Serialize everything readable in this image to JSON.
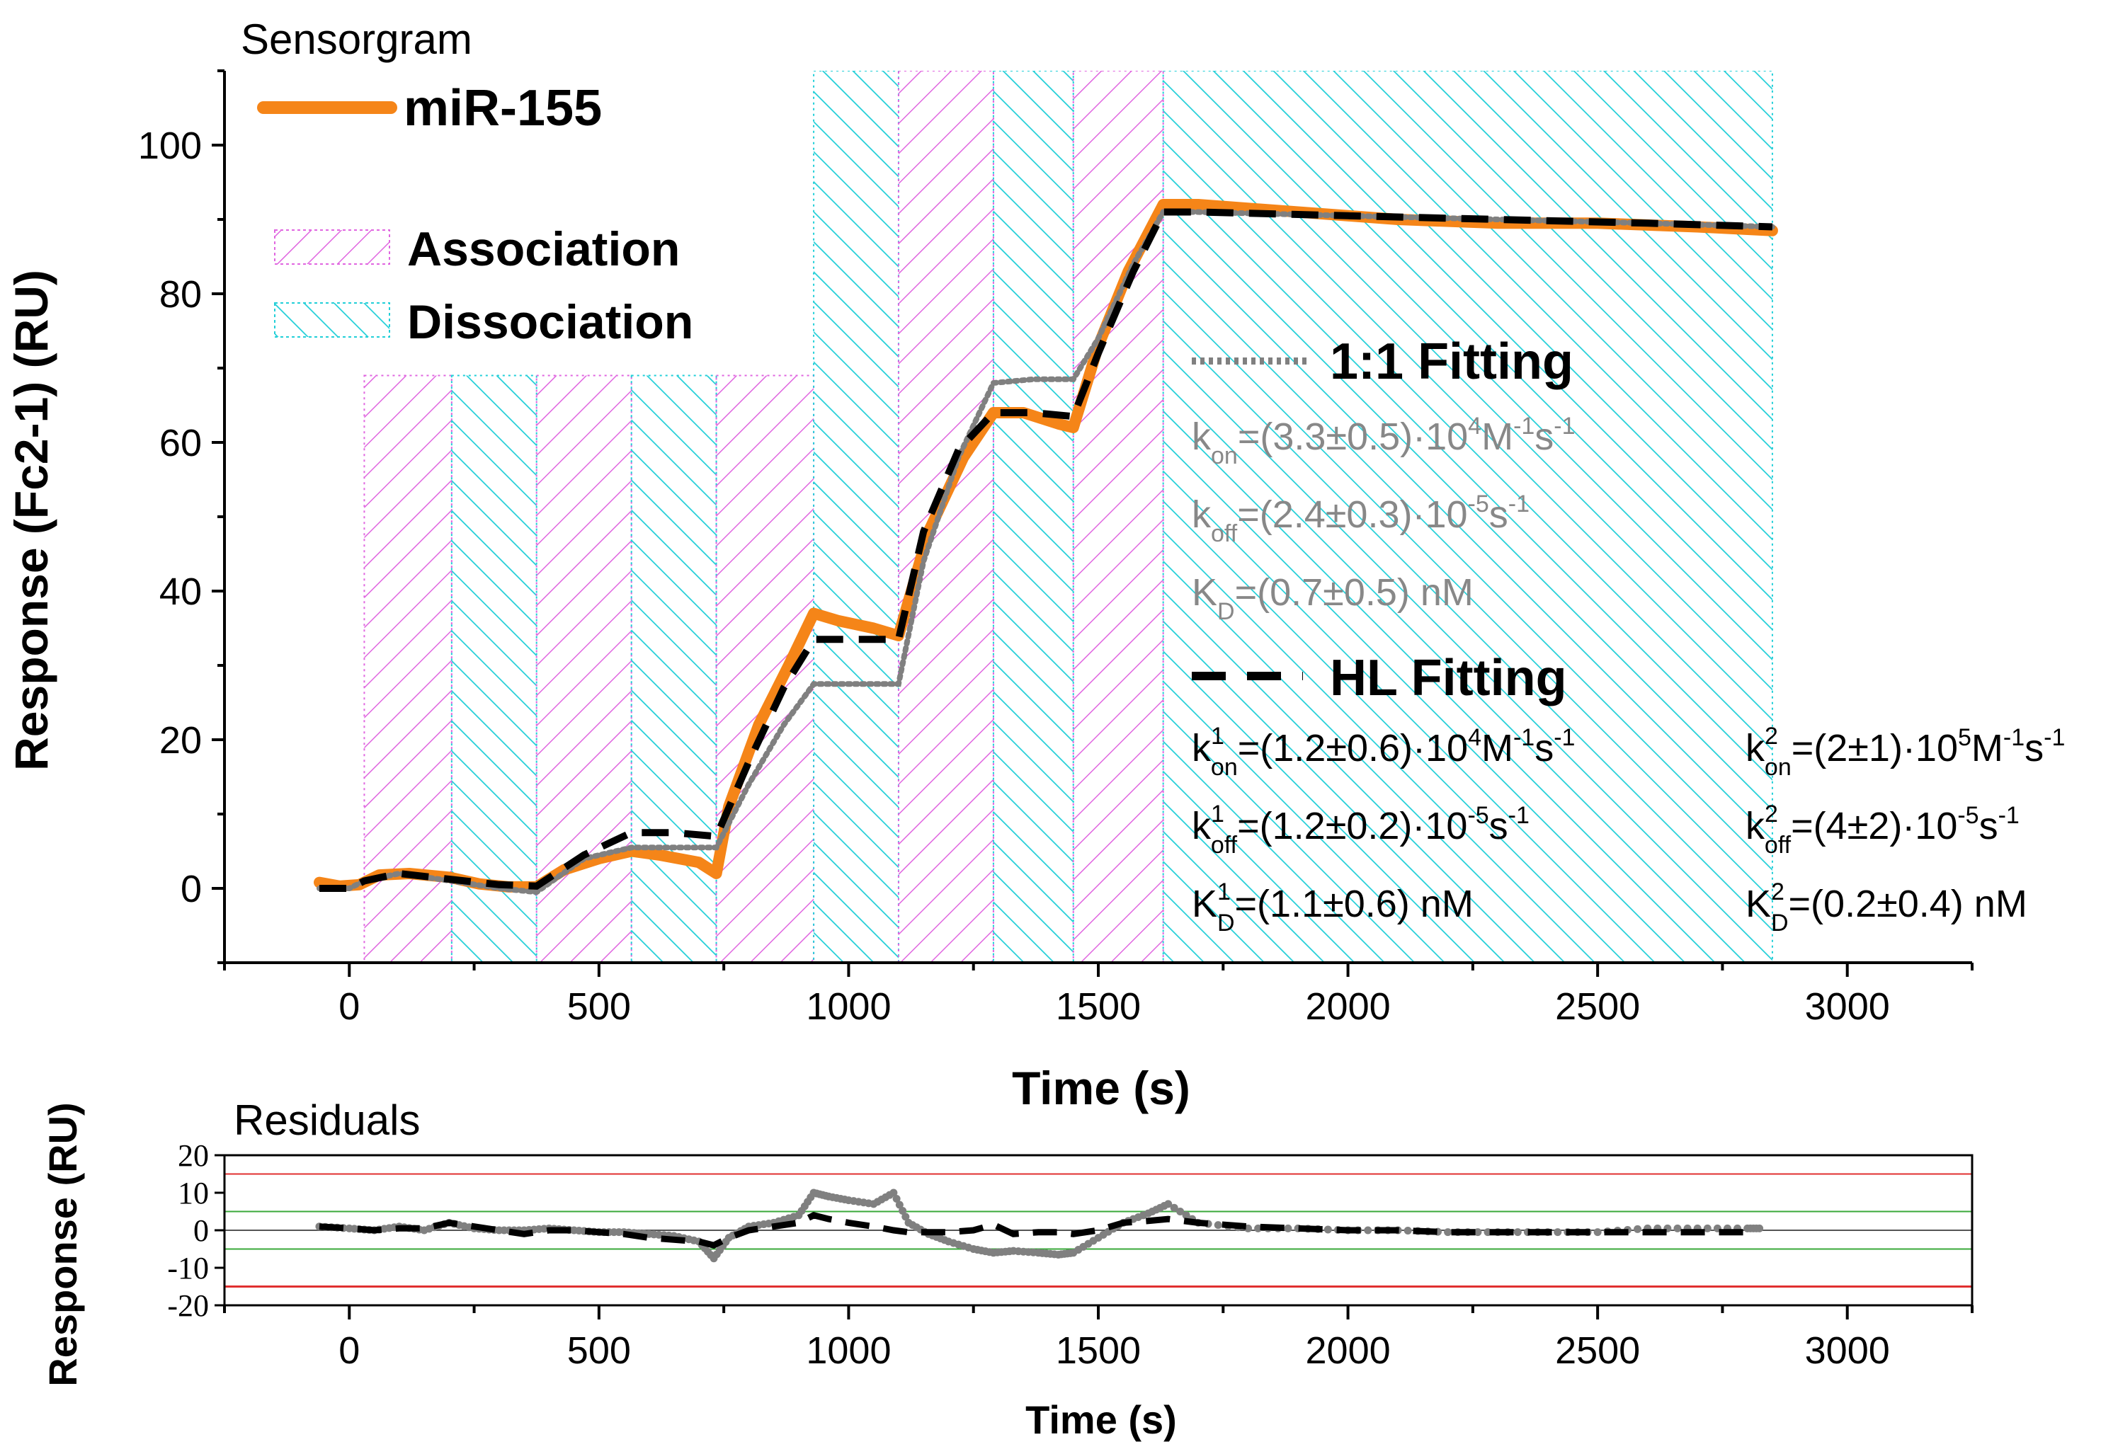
{
  "colors": {
    "association": "#e066e0",
    "dissociation": "#22cfd8",
    "mir155": "#f58518",
    "fit_1to1": "#808080",
    "fit_hl": "#000000",
    "band_red": "#e03030",
    "band_green": "#3aa83a"
  },
  "chart_data": [
    {
      "type": "line",
      "title": "Sensorgram",
      "xlabel": "Time (s)",
      "ylabel": "Response (Fc2-1) (RU)",
      "xlim": [
        -250,
        3250
      ],
      "ylim": [
        -10,
        110
      ],
      "xticks": [
        0,
        500,
        1000,
        1500,
        2000,
        2500,
        3000
      ],
      "yticks": [
        0,
        20,
        40,
        60,
        80,
        100
      ],
      "legend": {
        "mir155": "miR-155",
        "association": "Association",
        "dissociation": "Dissociation",
        "fit11": "1:1 Fitting",
        "fithl": "HL Fitting"
      },
      "shaded_regions": [
        {
          "kind": "association",
          "x": [
            30,
            205
          ],
          "top": 69
        },
        {
          "kind": "dissociation",
          "x": [
            205,
            375
          ],
          "top": 69
        },
        {
          "kind": "association",
          "x": [
            375,
            565
          ],
          "top": 69
        },
        {
          "kind": "dissociation",
          "x": [
            565,
            735
          ],
          "top": 69
        },
        {
          "kind": "association",
          "x": [
            735,
            930
          ],
          "top": 69
        },
        {
          "kind": "dissociation",
          "x": [
            930,
            1100
          ],
          "top": 110
        },
        {
          "kind": "association",
          "x": [
            1100,
            1290
          ],
          "top": 110
        },
        {
          "kind": "dissociation",
          "x": [
            1290,
            1450
          ],
          "top": 110
        },
        {
          "kind": "association",
          "x": [
            1450,
            1630
          ],
          "top": 110
        },
        {
          "kind": "dissociation",
          "x": [
            1630,
            2850
          ],
          "top": 110
        }
      ],
      "series": [
        {
          "name": "miR-155",
          "x": [
            -60,
            -20,
            20,
            60,
            120,
            200,
            260,
            320,
            375,
            430,
            500,
            565,
            620,
            700,
            735,
            760,
            820,
            880,
            930,
            980,
            1050,
            1100,
            1160,
            1230,
            1290,
            1350,
            1420,
            1450,
            1500,
            1560,
            1630,
            1700,
            1900,
            2100,
            2300,
            2500,
            2700,
            2850
          ],
          "y": [
            0.8,
            0.3,
            0.5,
            1.8,
            2.0,
            1.5,
            0.6,
            0.2,
            0.2,
            2.5,
            4.0,
            5.0,
            4.5,
            3.5,
            2.0,
            11.0,
            22.0,
            30.0,
            37.0,
            36.0,
            35.0,
            34.0,
            48.0,
            58.0,
            64.0,
            64.0,
            62.5,
            62.0,
            73.0,
            83.0,
            92.0,
            92.0,
            91.0,
            90.0,
            89.5,
            89.5,
            89.0,
            88.5
          ]
        },
        {
          "name": "1:1 Fitting",
          "x": [
            -60,
            0,
            30,
            100,
            205,
            300,
            375,
            470,
            565,
            650,
            735,
            800,
            870,
            930,
            1000,
            1100,
            1150,
            1220,
            1290,
            1370,
            1450,
            1500,
            1570,
            1630,
            1700,
            2000,
            2300,
            2600,
            2850
          ],
          "y": [
            0,
            0,
            1.0,
            2.0,
            1.0,
            0.0,
            -0.5,
            4.0,
            5.5,
            5.5,
            5.5,
            14.0,
            22.0,
            27.5,
            27.5,
            27.5,
            44.0,
            58.0,
            68.0,
            68.5,
            68.5,
            74.0,
            84.0,
            91.0,
            91.0,
            90.5,
            90.0,
            89.5,
            89.0
          ]
        },
        {
          "name": "HL Fitting",
          "x": [
            -60,
            0,
            30,
            100,
            205,
            300,
            375,
            470,
            565,
            650,
            735,
            800,
            870,
            930,
            1000,
            1100,
            1150,
            1220,
            1290,
            1370,
            1450,
            1500,
            1570,
            1630,
            1700,
            2000,
            2300,
            2600,
            2850
          ],
          "y": [
            0,
            0,
            1.0,
            2.0,
            1.2,
            0.5,
            0.3,
            4.5,
            7.5,
            7.5,
            7.0,
            17.0,
            27.0,
            33.5,
            33.5,
            33.5,
            48.0,
            59.0,
            64.0,
            64.0,
            63.5,
            72.0,
            83.0,
            91.0,
            91.0,
            90.5,
            90.0,
            89.5,
            89.0
          ]
        }
      ],
      "annotations": {
        "fit11_params": [
          {
            "base": "k",
            "sub": "on",
            "rest": "=(3.3±0.5)·10",
            "exp": "4",
            "unit": "M",
            "unit_exp": "-1",
            "unit2": "s",
            "unit2_exp": "-1"
          },
          {
            "base": "k",
            "sub": "off",
            "rest": "=(2.4±0.3)·10",
            "exp": "-5",
            "unit": "s",
            "unit_exp": "-1"
          },
          {
            "base": "K",
            "sub": "D",
            "rest": "=(0.7±0.5) nM"
          }
        ],
        "hl_params_1": [
          {
            "base": "k",
            "sup": "1",
            "sub": "on",
            "rest": "=(1.2±0.6)·10",
            "exp": "4",
            "unit": "M",
            "unit_exp": "-1",
            "unit2": "s",
            "unit2_exp": "-1"
          },
          {
            "base": "k",
            "sup": "1",
            "sub": "off",
            "rest": "=(1.2±0.2)·10",
            "exp": "-5",
            "unit": "s",
            "unit_exp": "-1"
          },
          {
            "base": "K",
            "sup": "1",
            "sub": "D",
            "rest": "=(1.1±0.6) nM"
          }
        ],
        "hl_params_2": [
          {
            "base": "k",
            "sup": "2",
            "sub": "on",
            "rest": "=(2±1)·10",
            "exp": "5",
            "unit": "M",
            "unit_exp": "-1",
            "unit2": "s",
            "unit2_exp": "-1"
          },
          {
            "base": "k",
            "sup": "2",
            "sub": "off",
            "rest": "=(4±2)·10",
            "exp": "-5",
            "unit": "s",
            "unit_exp": "-1"
          },
          {
            "base": "K",
            "sup": "2",
            "sub": "D",
            "rest": "=(0.2±0.4) nM"
          }
        ]
      }
    },
    {
      "type": "scatter",
      "title": "Residuals",
      "xlabel": "Time (s)",
      "ylabel": "Response (RU)",
      "xlim": [
        -250,
        3250
      ],
      "ylim": [
        -20,
        20
      ],
      "xticks": [
        0,
        500,
        1000,
        1500,
        2000,
        2500,
        3000
      ],
      "yticks": [
        20,
        10,
        0,
        -10,
        -20
      ],
      "reference_lines": [
        {
          "y": 15,
          "color": "red"
        },
        {
          "y": 5,
          "color": "green"
        },
        {
          "y": 0,
          "color": "black"
        },
        {
          "y": -5,
          "color": "green"
        },
        {
          "y": -15,
          "color": "red"
        }
      ],
      "series": [
        {
          "name": "1:1 Fitting residuals",
          "x": [
            -60,
            0,
            50,
            100,
            150,
            200,
            250,
            300,
            350,
            400,
            450,
            500,
            550,
            600,
            650,
            700,
            730,
            760,
            800,
            850,
            900,
            930,
            960,
            1000,
            1050,
            1090,
            1120,
            1160,
            1200,
            1250,
            1290,
            1330,
            1380,
            1420,
            1450,
            1500,
            1550,
            1600,
            1640,
            1700,
            1800,
            1900,
            2000,
            2100,
            2200,
            2300,
            2400,
            2500,
            2600,
            2700,
            2800,
            2830
          ],
          "y": [
            1.0,
            0.5,
            0.0,
            1.0,
            0.0,
            2.0,
            0.5,
            0.0,
            0.0,
            0.5,
            0.0,
            -0.5,
            -0.5,
            -1.0,
            -1.5,
            -3.0,
            -7.5,
            -2.0,
            1.0,
            2.0,
            4.0,
            10.0,
            9.0,
            8.0,
            7.0,
            10.0,
            2.0,
            -1.0,
            -3.0,
            -5.0,
            -6.0,
            -5.5,
            -6.0,
            -6.5,
            -6.0,
            -2.0,
            2.0,
            4.5,
            7.0,
            2.0,
            0.5,
            0.5,
            0.0,
            0.0,
            -0.5,
            -0.5,
            -0.5,
            -0.5,
            0.5,
            0.5,
            0.5,
            0.5
          ]
        },
        {
          "name": "HL Fitting residuals",
          "x": [
            -60,
            0,
            50,
            100,
            150,
            200,
            250,
            300,
            350,
            400,
            450,
            500,
            550,
            600,
            650,
            700,
            730,
            760,
            800,
            850,
            900,
            930,
            960,
            1000,
            1050,
            1090,
            1120,
            1160,
            1200,
            1250,
            1290,
            1330,
            1380,
            1420,
            1450,
            1500,
            1550,
            1600,
            1640,
            1700,
            1800,
            1900,
            2000,
            2100,
            2200,
            2300,
            2400,
            2500,
            2600,
            2700,
            2800
          ],
          "y": [
            1.0,
            0.5,
            0.0,
            0.5,
            0.5,
            2.0,
            1.0,
            0.0,
            -1.0,
            0.0,
            0.0,
            -0.5,
            -1.0,
            -2.0,
            -2.5,
            -3.0,
            -4.0,
            -2.0,
            0.0,
            1.0,
            2.0,
            4.0,
            3.0,
            2.0,
            1.0,
            0.0,
            -0.5,
            -0.5,
            -0.5,
            0.0,
            1.5,
            -1.0,
            -0.5,
            -0.5,
            -1.0,
            0.0,
            2.0,
            2.5,
            3.0,
            2.0,
            1.0,
            0.5,
            0.0,
            0.0,
            -0.5,
            -0.5,
            -0.5,
            -0.5,
            -0.5,
            -0.5,
            -0.5
          ]
        }
      ]
    }
  ]
}
